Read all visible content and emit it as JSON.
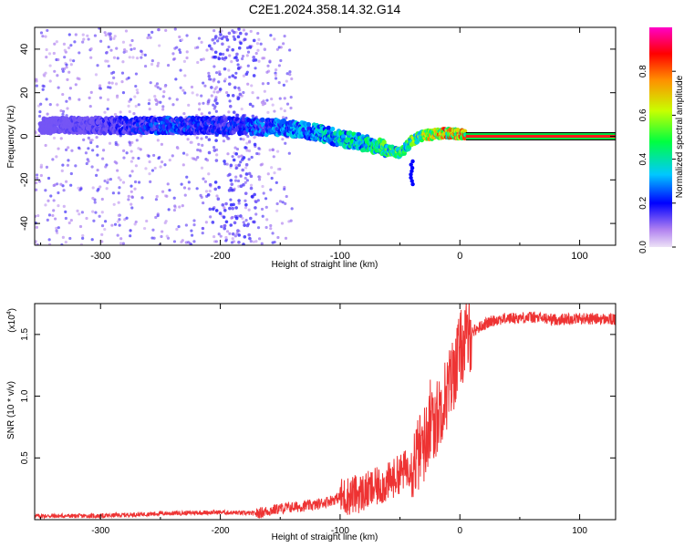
{
  "title": "C2E1.2024.358.14.32.G14",
  "chart_data": [
    {
      "type": "heatmap",
      "xlabel": "Height of straight line (km)",
      "ylabel": "Frequency (Hz)",
      "xlim": [
        -355,
        130
      ],
      "ylim": [
        -50,
        50
      ],
      "xticks": [
        -300,
        -200,
        -100,
        0,
        100
      ],
      "yticks": [
        -40,
        -20,
        0,
        20,
        40
      ],
      "colorbar": {
        "label": "Normalized spectral amplitude",
        "range": [
          0.0,
          1.0
        ],
        "ticks": [
          0.0,
          0.2,
          0.4,
          0.6,
          0.8
        ],
        "colors": [
          "#ede2f6",
          "#7a00ff",
          "#0033ff",
          "#00e0e0",
          "#00ff00",
          "#e6ff00",
          "#ff7f00",
          "#ff0000",
          "#ff00ff"
        ]
      },
      "ridge": {
        "x": [
          -350,
          -300,
          -250,
          -200,
          -150,
          -120,
          -100,
          -80,
          -60,
          -50,
          -45,
          -40,
          -30,
          -20,
          -10,
          0,
          130
        ],
        "frequency": [
          5,
          5,
          5,
          5,
          4,
          2,
          -1,
          -3,
          -6,
          -8,
          -5,
          -2,
          0.5,
          1,
          1.5,
          1,
          1
        ],
        "amplitude": [
          0.1,
          0.15,
          0.25,
          0.2,
          0.3,
          0.35,
          0.4,
          0.4,
          0.5,
          0.5,
          0.45,
          0.55,
          0.6,
          0.7,
          0.75,
          0.8,
          0.8
        ]
      },
      "tone_line": {
        "x": [
          5,
          130
        ],
        "frequency": 0,
        "amplitude": 0.85
      }
    },
    {
      "type": "line",
      "xlabel": "Height of straight line (km)",
      "ylabel": "SNR (10 * v/v)",
      "y_scale_label": "(x10",
      "y_scale_exponent": "4",
      "xlim": [
        -355,
        130
      ],
      "ylim": [
        0,
        1.75
      ],
      "xticks": [
        -300,
        -200,
        -100,
        0,
        100
      ],
      "yticks": [
        0.5,
        1.0,
        1.5
      ],
      "ytick_labels": [
        "0.5",
        "1.0",
        "1.5"
      ],
      "color": "#ee3333",
      "series": [
        {
          "x": [
            -355,
            -300,
            -250,
            -200,
            -170,
            -150,
            -120,
            -100,
            -80,
            -60,
            -40,
            -30,
            -25,
            -20,
            -15,
            -10,
            -5,
            0,
            10,
            20,
            30,
            40,
            60,
            80,
            100,
            130
          ],
          "values": [
            0.03,
            0.03,
            0.05,
            0.06,
            0.05,
            0.09,
            0.12,
            0.18,
            0.22,
            0.3,
            0.45,
            0.6,
            0.75,
            0.8,
            0.95,
            1.05,
            1.2,
            1.38,
            1.52,
            1.58,
            1.62,
            1.63,
            1.64,
            1.62,
            1.63,
            1.62
          ]
        }
      ]
    }
  ]
}
